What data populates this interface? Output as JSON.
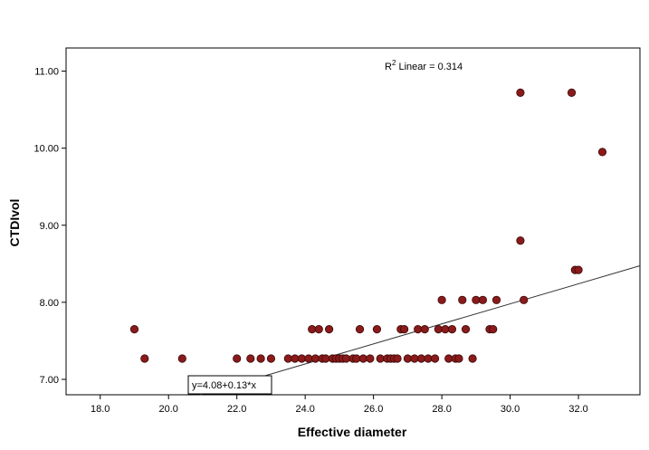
{
  "chart_data": {
    "type": "scatter",
    "title": "",
    "xlabel": "Effective diameter",
    "ylabel": "CTDIvol",
    "xlim": [
      17.0,
      33.8
    ],
    "ylim": [
      6.8,
      11.3
    ],
    "xticks": [
      "18.0",
      "20.0",
      "22.0",
      "24.0",
      "26.0",
      "28.0",
      "30.0",
      "32.0"
    ],
    "yticks": [
      "7.00",
      "8.00",
      "9.00",
      "10.00",
      "11.00"
    ],
    "grid": false,
    "marker_color": "#8b1a1a",
    "r2_label": {
      "prefix": "R",
      "sup": "2",
      "suffix": " Linear = 0.314"
    },
    "fit_line": {
      "intercept": 4.08,
      "slope": 0.13,
      "label": "y=4.08+0.13*x"
    },
    "points": [
      [
        19.0,
        7.65
      ],
      [
        19.3,
        7.27
      ],
      [
        20.4,
        7.27
      ],
      [
        22.0,
        7.27
      ],
      [
        22.4,
        7.27
      ],
      [
        22.7,
        7.27
      ],
      [
        23.0,
        7.27
      ],
      [
        23.5,
        7.27
      ],
      [
        23.7,
        7.27
      ],
      [
        23.9,
        7.27
      ],
      [
        24.1,
        7.27
      ],
      [
        24.2,
        7.65
      ],
      [
        24.3,
        7.27
      ],
      [
        24.4,
        7.65
      ],
      [
        24.5,
        7.27
      ],
      [
        24.6,
        7.27
      ],
      [
        24.7,
        7.65
      ],
      [
        24.8,
        7.27
      ],
      [
        24.9,
        7.27
      ],
      [
        25.0,
        7.27
      ],
      [
        25.1,
        7.27
      ],
      [
        25.2,
        7.27
      ],
      [
        25.4,
        7.27
      ],
      [
        25.5,
        7.27
      ],
      [
        25.6,
        7.65
      ],
      [
        25.7,
        7.27
      ],
      [
        25.9,
        7.27
      ],
      [
        26.1,
        7.65
      ],
      [
        26.2,
        7.27
      ],
      [
        26.4,
        7.27
      ],
      [
        26.5,
        7.27
      ],
      [
        26.6,
        7.27
      ],
      [
        26.7,
        7.27
      ],
      [
        26.8,
        7.65
      ],
      [
        26.9,
        7.65
      ],
      [
        27.0,
        7.27
      ],
      [
        27.2,
        7.27
      ],
      [
        27.3,
        7.65
      ],
      [
        27.4,
        7.27
      ],
      [
        27.5,
        7.65
      ],
      [
        27.6,
        7.27
      ],
      [
        27.8,
        7.27
      ],
      [
        27.9,
        7.65
      ],
      [
        28.0,
        8.03
      ],
      [
        28.1,
        7.65
      ],
      [
        28.2,
        7.27
      ],
      [
        28.3,
        7.65
      ],
      [
        28.4,
        7.27
      ],
      [
        28.5,
        7.27
      ],
      [
        28.6,
        8.03
      ],
      [
        28.7,
        7.65
      ],
      [
        28.9,
        7.27
      ],
      [
        29.0,
        8.03
      ],
      [
        29.2,
        8.03
      ],
      [
        29.4,
        7.65
      ],
      [
        29.5,
        7.65
      ],
      [
        29.6,
        8.03
      ],
      [
        30.3,
        8.8
      ],
      [
        30.3,
        10.72
      ],
      [
        30.4,
        8.03
      ],
      [
        31.8,
        10.72
      ],
      [
        31.9,
        8.42
      ],
      [
        32.0,
        8.42
      ],
      [
        32.7,
        9.95
      ]
    ]
  }
}
